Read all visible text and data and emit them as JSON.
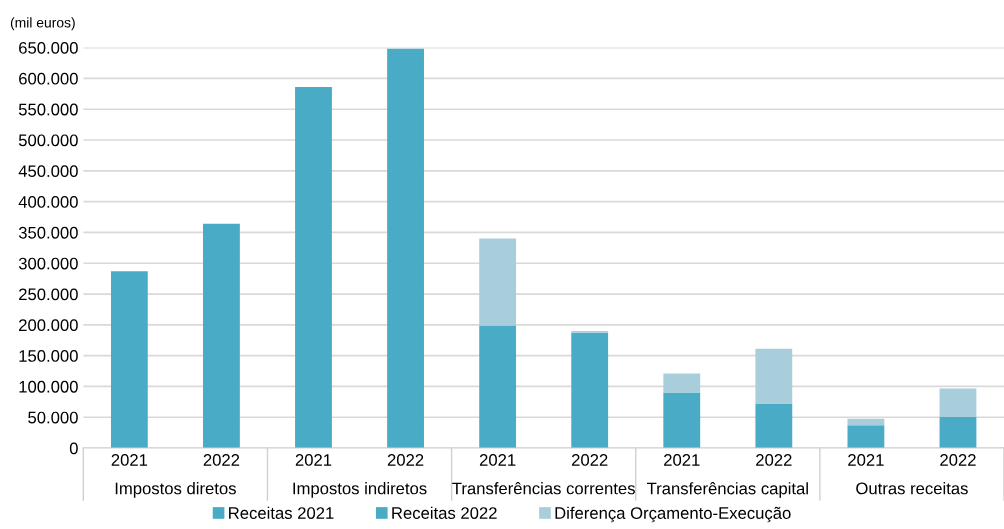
{
  "chart_data": {
    "type": "bar",
    "stacked": true,
    "ylabel": "(mil euros)",
    "categories": [
      "2021",
      "2022",
      "2021",
      "2022",
      "2021",
      "2022",
      "2021",
      "2022",
      "2021",
      "2022"
    ],
    "annotations": [
      "Impostos diretos",
      "Impostos indiretos",
      "Transferências correntes",
      "Transferências capital",
      "Outras receitas"
    ],
    "series": [
      {
        "name": "Receitas 2021",
        "color": "#4aabc6",
        "values": [
          287000,
          null,
          586000,
          null,
          199000,
          null,
          90000,
          null,
          37000,
          null
        ]
      },
      {
        "name": "Receitas 2022",
        "color": "#4aabc6",
        "values": [
          null,
          364000,
          null,
          648000,
          null,
          187000,
          null,
          72500,
          null,
          50500
        ]
      },
      {
        "name": "Diferença Orçamento-Execução",
        "color": "#a8cedc",
        "values": [
          null,
          null,
          null,
          null,
          141000,
          3000,
          31000,
          88500,
          10500,
          46000
        ]
      }
    ],
    "ylim": [
      0,
      650000
    ],
    "yticks": [
      {
        "value": 0,
        "label": "0"
      },
      {
        "value": 50000,
        "label": "50.000"
      },
      {
        "value": 100000,
        "label": "100.000"
      },
      {
        "value": 150000,
        "label": "150.000"
      },
      {
        "value": 200000,
        "label": "200.000"
      },
      {
        "value": 250000,
        "label": "250.000"
      },
      {
        "value": 300000,
        "label": "300.000"
      },
      {
        "value": 350000,
        "label": "350.000"
      },
      {
        "value": 400000,
        "label": "400.000"
      },
      {
        "value": 450000,
        "label": "450.000"
      },
      {
        "value": 500000,
        "label": "500.000"
      },
      {
        "value": 550000,
        "label": "550.000"
      },
      {
        "value": 600000,
        "label": "600.000"
      },
      {
        "value": 650000,
        "label": "650.000"
      }
    ],
    "grid": "y",
    "legend": "bottom"
  }
}
